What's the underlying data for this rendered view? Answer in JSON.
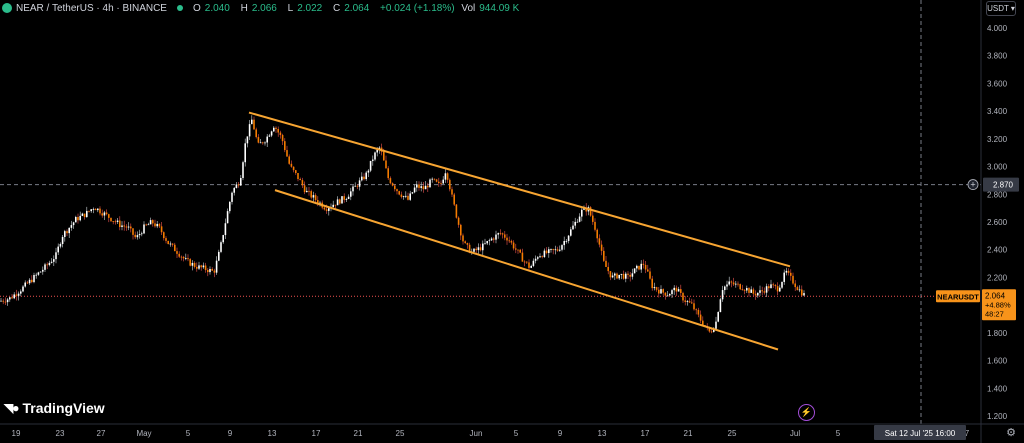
{
  "header": {
    "symbol": "NEAR / TetherUS · 4h · BINANCE",
    "open_label": "O",
    "open": "2.040",
    "high_label": "H",
    "high": "2.066",
    "low_label": "L",
    "low": "2.022",
    "close_label": "C",
    "close": "2.064",
    "change": "+0.024 (+1.18%)",
    "vol_label": "Vol",
    "vol": "944.09 K"
  },
  "currency_button": "USDT",
  "watermark": "TradingView",
  "crosshair": {
    "price": "2.870",
    "time": "Sat 12 Jul '25   16:00"
  },
  "price_tag": {
    "ticker": "NEARUSDT",
    "price": "2.064",
    "change": "+4.88%",
    "countdown": "48:27"
  },
  "colors": {
    "up": "#26a69a",
    "down": "#ef5350",
    "channel": "#f7a532",
    "background": "#000000",
    "text": "#b2b5be"
  },
  "icons": {
    "crosshair_add": "plus-circle-icon",
    "lightning": "lightning-icon",
    "settings": "gear-icon"
  },
  "chart_data": {
    "type": "candlestick",
    "y_ticks": [
      "4.000",
      "3.800",
      "3.600",
      "3.400",
      "3.200",
      "3.000",
      "2.800",
      "2.600",
      "2.400",
      "2.200",
      "2.000",
      "1.800",
      "1.600",
      "1.400",
      "1.200"
    ],
    "x_ticks": [
      "19",
      "23",
      "27",
      "May",
      "5",
      "9",
      "13",
      "17",
      "21",
      "25",
      "Jun",
      "5",
      "9",
      "13",
      "17",
      "21",
      "25",
      "Jul",
      "5",
      "7"
    ],
    "ylim": [
      1.18,
      4.1
    ],
    "close_path": [
      [
        0,
        2.03
      ],
      [
        10,
        2.05
      ],
      [
        22,
        2.12
      ],
      [
        34,
        2.2
      ],
      [
        46,
        2.28
      ],
      [
        56,
        2.36
      ],
      [
        62,
        2.5
      ],
      [
        68,
        2.55
      ],
      [
        76,
        2.62
      ],
      [
        86,
        2.66
      ],
      [
        94,
        2.71
      ],
      [
        104,
        2.66
      ],
      [
        112,
        2.62
      ],
      [
        120,
        2.58
      ],
      [
        128,
        2.56
      ],
      [
        136,
        2.48
      ],
      [
        144,
        2.56
      ],
      [
        152,
        2.6
      ],
      [
        160,
        2.55
      ],
      [
        168,
        2.45
      ],
      [
        178,
        2.38
      ],
      [
        186,
        2.32
      ],
      [
        196,
        2.28
      ],
      [
        206,
        2.26
      ],
      [
        214,
        2.24
      ],
      [
        220,
        2.4
      ],
      [
        226,
        2.62
      ],
      [
        232,
        2.82
      ],
      [
        240,
        2.9
      ],
      [
        246,
        3.2
      ],
      [
        252,
        3.34
      ],
      [
        258,
        3.15
      ],
      [
        266,
        3.2
      ],
      [
        274,
        3.3
      ],
      [
        282,
        3.2
      ],
      [
        290,
        3.0
      ],
      [
        298,
        2.92
      ],
      [
        306,
        2.82
      ],
      [
        316,
        2.76
      ],
      [
        326,
        2.7
      ],
      [
        336,
        2.74
      ],
      [
        346,
        2.78
      ],
      [
        356,
        2.86
      ],
      [
        366,
        2.94
      ],
      [
        374,
        3.08
      ],
      [
        380,
        3.14
      ],
      [
        388,
        2.92
      ],
      [
        398,
        2.82
      ],
      [
        408,
        2.76
      ],
      [
        416,
        2.86
      ],
      [
        424,
        2.84
      ],
      [
        432,
        2.9
      ],
      [
        440,
        2.86
      ],
      [
        446,
        2.98
      ],
      [
        452,
        2.78
      ],
      [
        458,
        2.6
      ],
      [
        464,
        2.44
      ],
      [
        472,
        2.38
      ],
      [
        482,
        2.42
      ],
      [
        492,
        2.48
      ],
      [
        500,
        2.52
      ],
      [
        508,
        2.48
      ],
      [
        516,
        2.4
      ],
      [
        524,
        2.32
      ],
      [
        530,
        2.27
      ],
      [
        538,
        2.36
      ],
      [
        548,
        2.38
      ],
      [
        558,
        2.4
      ],
      [
        566,
        2.48
      ],
      [
        574,
        2.58
      ],
      [
        582,
        2.68
      ],
      [
        588,
        2.7
      ],
      [
        596,
        2.54
      ],
      [
        604,
        2.3
      ],
      [
        612,
        2.2
      ],
      [
        620,
        2.22
      ],
      [
        628,
        2.2
      ],
      [
        636,
        2.26
      ],
      [
        644,
        2.3
      ],
      [
        652,
        2.14
      ],
      [
        660,
        2.1
      ],
      [
        668,
        2.08
      ],
      [
        676,
        2.12
      ],
      [
        684,
        2.04
      ],
      [
        692,
        2.0
      ],
      [
        700,
        1.9
      ],
      [
        706,
        1.84
      ],
      [
        710,
        1.8
      ],
      [
        716,
        1.88
      ],
      [
        722,
        2.12
      ],
      [
        730,
        2.16
      ],
      [
        738,
        2.14
      ],
      [
        746,
        2.12
      ],
      [
        754,
        2.08
      ],
      [
        762,
        2.1
      ],
      [
        770,
        2.14
      ],
      [
        778,
        2.12
      ],
      [
        786,
        2.24
      ],
      [
        792,
        2.18
      ],
      [
        798,
        2.12
      ],
      [
        806,
        2.06
      ]
    ],
    "channel": {
      "upper": [
        [
          249,
          3.39
        ],
        [
          790,
          2.28
        ]
      ],
      "lower": [
        [
          275,
          2.83
        ],
        [
          778,
          1.68
        ]
      ]
    },
    "current_price": 2.064,
    "crosshair_price": 2.87
  }
}
